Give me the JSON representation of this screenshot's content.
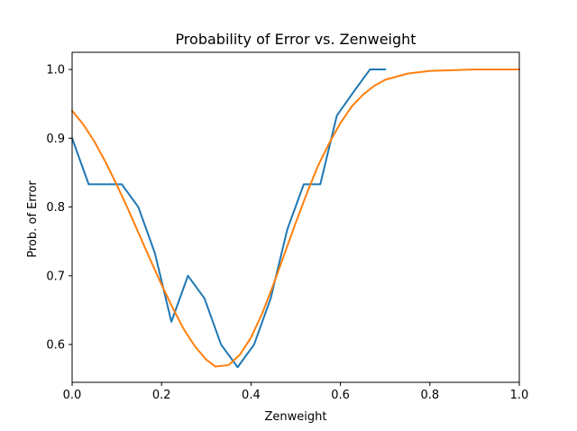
{
  "chart_data": {
    "type": "line",
    "title": "Probability of Error vs. Zenweight",
    "xlabel": "Zenweight",
    "ylabel": "Prob. of Error",
    "xlim": [
      0.0,
      1.0
    ],
    "ylim": [
      0.545,
      1.025
    ],
    "xticks": [
      "0.0",
      "0.2",
      "0.4",
      "0.6",
      "0.8",
      "1.0"
    ],
    "yticks": [
      "0.6",
      "0.7",
      "0.8",
      "0.9",
      "1.0"
    ],
    "grid": false,
    "legend": "none",
    "series": [
      {
        "color": "#1f77b4",
        "x": [
          0.0,
          0.037,
          0.074,
          0.111,
          0.148,
          0.185,
          0.222,
          0.259,
          0.296,
          0.333,
          0.37,
          0.407,
          0.444,
          0.481,
          0.518,
          0.555,
          0.592,
          0.629,
          0.666,
          0.7
        ],
        "y": [
          0.9,
          0.833,
          0.833,
          0.833,
          0.8,
          0.733,
          0.633,
          0.7,
          0.667,
          0.6,
          0.567,
          0.6,
          0.667,
          0.767,
          0.833,
          0.833,
          0.933,
          0.967,
          1.0,
          1.0
        ]
      },
      {
        "color": "#ff7f0e",
        "x": [
          0.0,
          0.025,
          0.05,
          0.075,
          0.1,
          0.125,
          0.15,
          0.175,
          0.2,
          0.225,
          0.25,
          0.275,
          0.3,
          0.32,
          0.35,
          0.375,
          0.4,
          0.425,
          0.45,
          0.475,
          0.5,
          0.525,
          0.55,
          0.575,
          0.6,
          0.625,
          0.65,
          0.675,
          0.7,
          0.75,
          0.8,
          0.85,
          0.9,
          0.95,
          1.0
        ],
        "y": [
          0.94,
          0.92,
          0.895,
          0.865,
          0.832,
          0.797,
          0.76,
          0.723,
          0.687,
          0.653,
          0.622,
          0.597,
          0.578,
          0.568,
          0.57,
          0.585,
          0.61,
          0.645,
          0.687,
          0.732,
          0.777,
          0.82,
          0.86,
          0.893,
          0.922,
          0.946,
          0.963,
          0.976,
          0.985,
          0.994,
          0.998,
          0.999,
          1.0,
          1.0,
          1.0
        ]
      }
    ]
  }
}
